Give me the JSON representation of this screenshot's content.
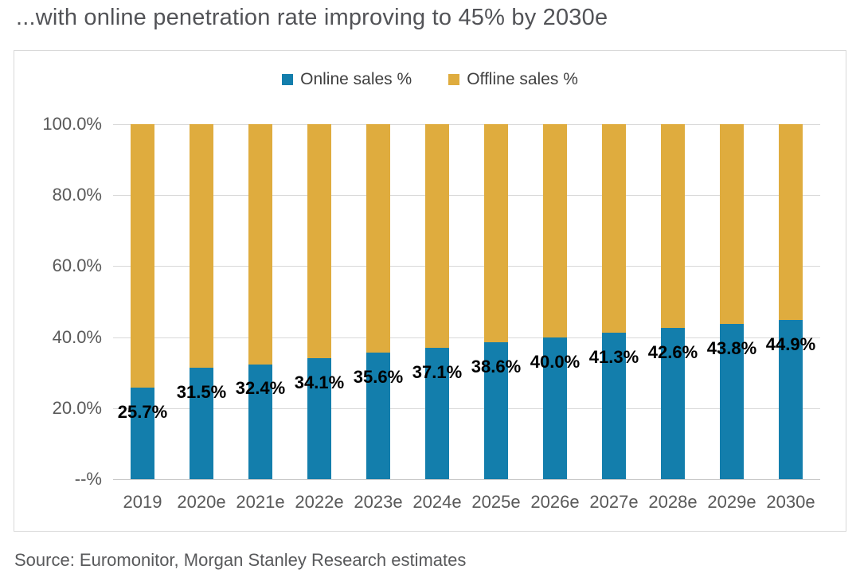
{
  "page": {
    "title": "...with online penetration rate improving to 45% by 2030e",
    "source": "Source: Euromonitor, Morgan Stanley Research estimates"
  },
  "colors": {
    "online": "#137eac",
    "offline": "#dfac3e",
    "grid": "#d9d9d9",
    "axis_text": "#595959",
    "data_label_text": "#000000"
  },
  "chart_data": {
    "type": "bar",
    "stacked": true,
    "title": "...with online penetration rate improving to 45% by 2030e",
    "categories": [
      "2019",
      "2020e",
      "2021e",
      "2022e",
      "2023e",
      "2024e",
      "2025e",
      "2026e",
      "2027e",
      "2028e",
      "2029e",
      "2030e"
    ],
    "series": [
      {
        "name": "Online sales %",
        "color_key": "online",
        "values": [
          25.7,
          31.5,
          32.4,
          34.1,
          35.6,
          37.1,
          38.6,
          40.0,
          41.3,
          42.6,
          43.8,
          44.9
        ]
      },
      {
        "name": "Offline sales %",
        "color_key": "offline",
        "values": [
          74.3,
          68.5,
          67.6,
          65.9,
          64.4,
          62.9,
          61.4,
          60.0,
          58.7,
          57.4,
          56.2,
          55.1
        ]
      }
    ],
    "data_labels": [
      "25.7%",
      "31.5%",
      "32.4%",
      "34.1%",
      "35.6%",
      "37.1%",
      "38.6%",
      "40.0%",
      "41.3%",
      "42.6%",
      "43.8%",
      "44.9%"
    ],
    "y_axis": {
      "ticks": [
        {
          "label": "100.0%",
          "value": 100
        },
        {
          "label": "80.0%",
          "value": 80
        },
        {
          "label": "60.0%",
          "value": 60
        },
        {
          "label": "40.0%",
          "value": 40
        },
        {
          "label": "20.0%",
          "value": 20
        },
        {
          "label": "--%",
          "value": 0
        }
      ]
    },
    "ylim": [
      0,
      100
    ],
    "grid": true,
    "legend_position": "top-center",
    "xlabel": "",
    "ylabel": ""
  }
}
